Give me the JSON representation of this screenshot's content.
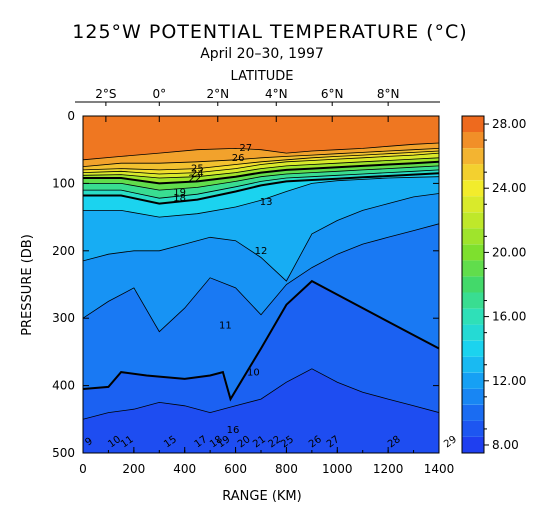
{
  "chart_data": {
    "type": "heatmap",
    "title": "125°W POTENTIAL TEMPERATURE (°C)",
    "subtitle": "April 20–30, 1997",
    "top_axis_label": "LATITUDE",
    "top_ticks": [
      "2°S",
      "0°",
      "2°N",
      "4°N",
      "6°N",
      "8°N"
    ],
    "top_tick_range_km": [
      90,
      300,
      530,
      760,
      980,
      1200
    ],
    "xlabel": "RANGE (KM)",
    "ylabel": "PRESSURE (DB)",
    "xlim": [
      0,
      1400
    ],
    "ylim": [
      0,
      500
    ],
    "y_inverted": true,
    "x_ticks": [
      "0",
      "200",
      "400",
      "600",
      "800",
      "1000",
      "1200",
      "1400"
    ],
    "y_ticks": [
      "0",
      "100",
      "200",
      "300",
      "400",
      "500"
    ],
    "colorbar": {
      "range": [
        7.5,
        28.5
      ],
      "tick_labels": [
        "8.00",
        "12.00",
        "16.00",
        "20.00",
        "24.00",
        "28.00"
      ],
      "stops": [
        {
          "v": 8,
          "color": "#1f3ff0"
        },
        {
          "v": 10,
          "color": "#1a6cf2"
        },
        {
          "v": 12,
          "color": "#16a0f4"
        },
        {
          "v": 14,
          "color": "#1bd3ef"
        },
        {
          "v": 16,
          "color": "#2fe0b8"
        },
        {
          "v": 18,
          "color": "#43d96a"
        },
        {
          "v": 20,
          "color": "#7ee02e"
        },
        {
          "v": 22,
          "color": "#bfe82a"
        },
        {
          "v": 24,
          "color": "#f2ec2c"
        },
        {
          "v": 26,
          "color": "#f3b431"
        },
        {
          "v": 28,
          "color": "#ee6a1e"
        }
      ]
    },
    "isotherms_depth_db": [
      {
        "t": 27,
        "x": [
          0,
          150,
          300,
          450,
          600,
          700,
          800,
          900,
          1000,
          1100,
          1200,
          1300,
          1400
        ],
        "d": [
          65,
          60,
          55,
          50,
          48,
          50,
          55,
          52,
          50,
          48,
          45,
          42,
          40
        ]
      },
      {
        "t": 26,
        "x": [
          0,
          150,
          300,
          450,
          600,
          700,
          800,
          900,
          1000,
          1100,
          1200,
          1300,
          1400
        ],
        "d": [
          75,
          70,
          70,
          68,
          65,
          62,
          60,
          58,
          56,
          54,
          52,
          50,
          48
        ]
      },
      {
        "t": 25,
        "x": [
          0,
          150,
          300,
          450,
          600,
          700,
          800,
          900,
          1000,
          1100,
          1200,
          1300,
          1400
        ],
        "d": [
          80,
          78,
          80,
          78,
          72,
          68,
          65,
          62,
          60,
          58,
          56,
          54,
          52
        ]
      },
      {
        "t": 24,
        "x": [
          0,
          150,
          300,
          450,
          600,
          700,
          800,
          900,
          1000,
          1100,
          1200,
          1300,
          1400
        ],
        "d": [
          84,
          82,
          86,
          84,
          78,
          72,
          68,
          66,
          64,
          62,
          60,
          58,
          55
        ]
      },
      {
        "t": 22,
        "x": [
          0,
          150,
          300,
          450,
          600,
          700,
          800,
          900,
          1000,
          1100,
          1200,
          1300,
          1400
        ],
        "d": [
          88,
          87,
          92,
          90,
          84,
          78,
          74,
          72,
          70,
          68,
          66,
          64,
          62
        ]
      },
      {
        "t": 20,
        "x": [
          0,
          150,
          300,
          450,
          600,
          700,
          800,
          900,
          1000,
          1100,
          1200,
          1300,
          1400
        ],
        "d": [
          92,
          92,
          100,
          97,
          90,
          84,
          80,
          78,
          76,
          74,
          72,
          70,
          68
        ]
      },
      {
        "t": 18,
        "x": [
          0,
          150,
          300,
          450,
          600,
          700,
          800,
          900,
          1000,
          1100,
          1200,
          1300,
          1400
        ],
        "d": [
          100,
          100,
          110,
          106,
          97,
          90,
          86,
          84,
          82,
          80,
          78,
          76,
          74
        ]
      },
      {
        "t": 16,
        "x": [
          0,
          150,
          300,
          450,
          600,
          700,
          800,
          900,
          1000,
          1100,
          1200,
          1300,
          1400
        ],
        "d": [
          110,
          110,
          122,
          116,
          105,
          97,
          92,
          90,
          88,
          86,
          84,
          82,
          80
        ]
      },
      {
        "t": 15,
        "x": [
          0,
          150,
          300,
          450,
          600,
          700,
          800,
          900,
          1000,
          1100,
          1200,
          1300,
          1400
        ],
        "d": [
          118,
          118,
          130,
          124,
          112,
          103,
          97,
          95,
          93,
          91,
          89,
          87,
          85
        ]
      },
      {
        "t": 13,
        "x": [
          0,
          150,
          300,
          450,
          600,
          700,
          800,
          900,
          1000,
          1100,
          1200,
          1300,
          1400
        ],
        "d": [
          140,
          140,
          150,
          145,
          135,
          125,
          112,
          100,
          96,
          94,
          92,
          91,
          90
        ]
      },
      {
        "t": 12,
        "x": [
          0,
          100,
          200,
          300,
          400,
          500,
          600,
          700,
          800,
          900,
          1000,
          1100,
          1200,
          1300,
          1400
        ],
        "d": [
          215,
          205,
          200,
          200,
          190,
          180,
          185,
          210,
          245,
          175,
          155,
          140,
          130,
          120,
          115
        ]
      },
      {
        "t": 11,
        "x": [
          0,
          100,
          200,
          300,
          400,
          500,
          600,
          700,
          800,
          900,
          1000,
          1100,
          1200,
          1300,
          1400
        ],
        "d": [
          300,
          275,
          255,
          320,
          285,
          240,
          255,
          295,
          250,
          225,
          205,
          190,
          180,
          170,
          160
        ]
      },
      {
        "t": 10,
        "x": [
          0,
          100,
          150,
          250,
          400,
          500,
          550,
          580,
          620,
          700,
          800,
          900,
          1000,
          1100,
          1200,
          1300,
          1400
        ],
        "d": [
          405,
          402,
          380,
          385,
          390,
          385,
          380,
          420,
          395,
          345,
          280,
          245,
          265,
          285,
          305,
          325,
          345
        ]
      },
      {
        "t": 9,
        "x": [
          0,
          100,
          200,
          300,
          400,
          500,
          600,
          700,
          800,
          900,
          1000,
          1100,
          1200,
          1300,
          1400
        ],
        "d": [
          450,
          440,
          435,
          425,
          430,
          440,
          430,
          420,
          395,
          375,
          395,
          410,
          420,
          430,
          440
        ]
      }
    ],
    "contour_labels": [
      {
        "text": "27",
        "x": 640,
        "d": 52
      },
      {
        "text": "26",
        "x": 610,
        "d": 67
      },
      {
        "text": "25",
        "x": 450,
        "d": 82
      },
      {
        "text": "24",
        "x": 450,
        "d": 90
      },
      {
        "text": "22",
        "x": 440,
        "d": 97
      },
      {
        "text": "19",
        "x": 380,
        "d": 118
      },
      {
        "text": "18",
        "x": 380,
        "d": 126
      },
      {
        "text": "13",
        "x": 720,
        "d": 132
      },
      {
        "text": "12",
        "x": 700,
        "d": 205
      },
      {
        "text": "11",
        "x": 560,
        "d": 315
      },
      {
        "text": "10",
        "x": 670,
        "d": 385
      },
      {
        "text": "9",
        "x": 30,
        "d": 487
      },
      {
        "text": "10",
        "x": 130,
        "d": 487
      },
      {
        "text": "11",
        "x": 180,
        "d": 487
      },
      {
        "text": "15",
        "x": 350,
        "d": 487
      },
      {
        "text": "17",
        "x": 470,
        "d": 487
      },
      {
        "text": "18",
        "x": 530,
        "d": 487
      },
      {
        "text": "19",
        "x": 560,
        "d": 487
      },
      {
        "text": "16",
        "x": 590,
        "d": 470
      },
      {
        "text": "20",
        "x": 640,
        "d": 487
      },
      {
        "text": "21",
        "x": 700,
        "d": 487
      },
      {
        "text": "22",
        "x": 760,
        "d": 487
      },
      {
        "text": "25",
        "x": 810,
        "d": 487
      },
      {
        "text": "26",
        "x": 920,
        "d": 487
      },
      {
        "text": "27",
        "x": 990,
        "d": 487
      },
      {
        "text": "28",
        "x": 1230,
        "d": 487
      },
      {
        "text": "29",
        "x": 1470,
        "d": 487
      }
    ]
  }
}
